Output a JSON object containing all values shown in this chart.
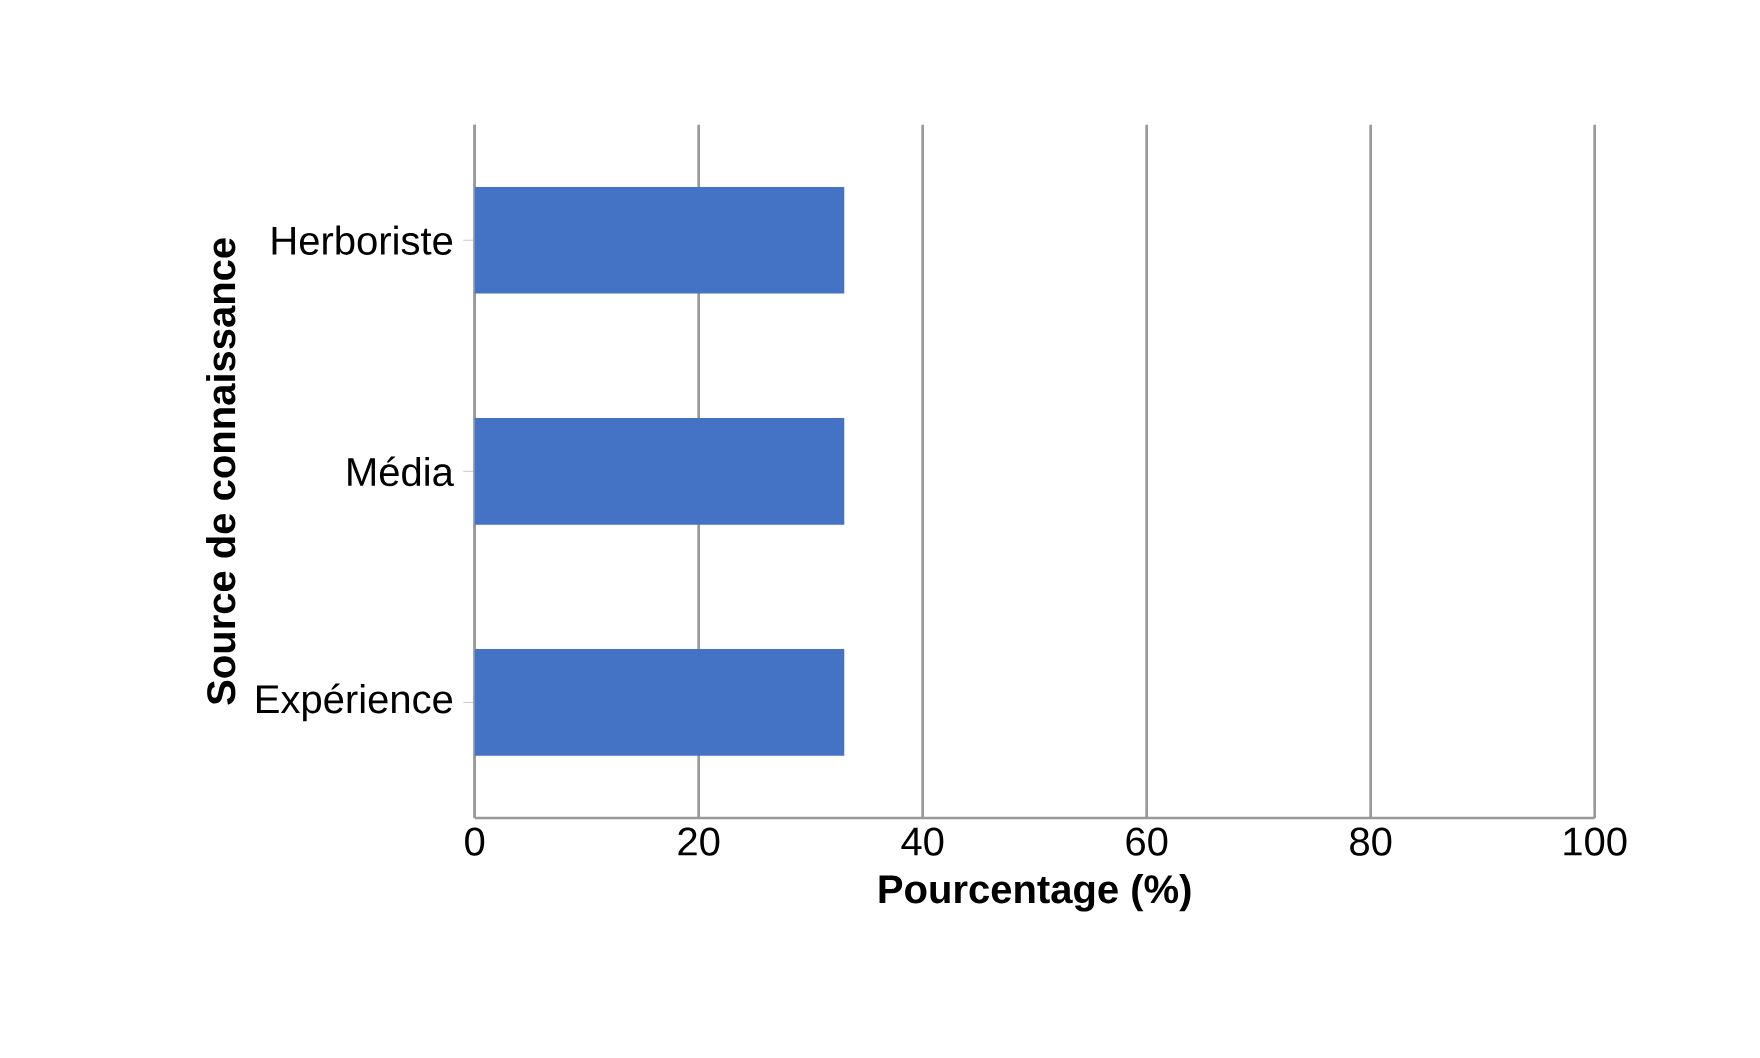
{
  "chart_data": {
    "type": "bar",
    "orientation": "horizontal",
    "categories": [
      "Herboriste",
      "Média",
      "Expérience"
    ],
    "values": [
      33,
      33,
      33
    ],
    "color": "#4472c4",
    "xlim": [
      0,
      100
    ],
    "xticks": [
      0,
      20,
      40,
      60,
      80,
      100
    ],
    "grid": "x",
    "xlabel": "Pourcentage (%)",
    "ylabel": "Source de connaissance"
  }
}
